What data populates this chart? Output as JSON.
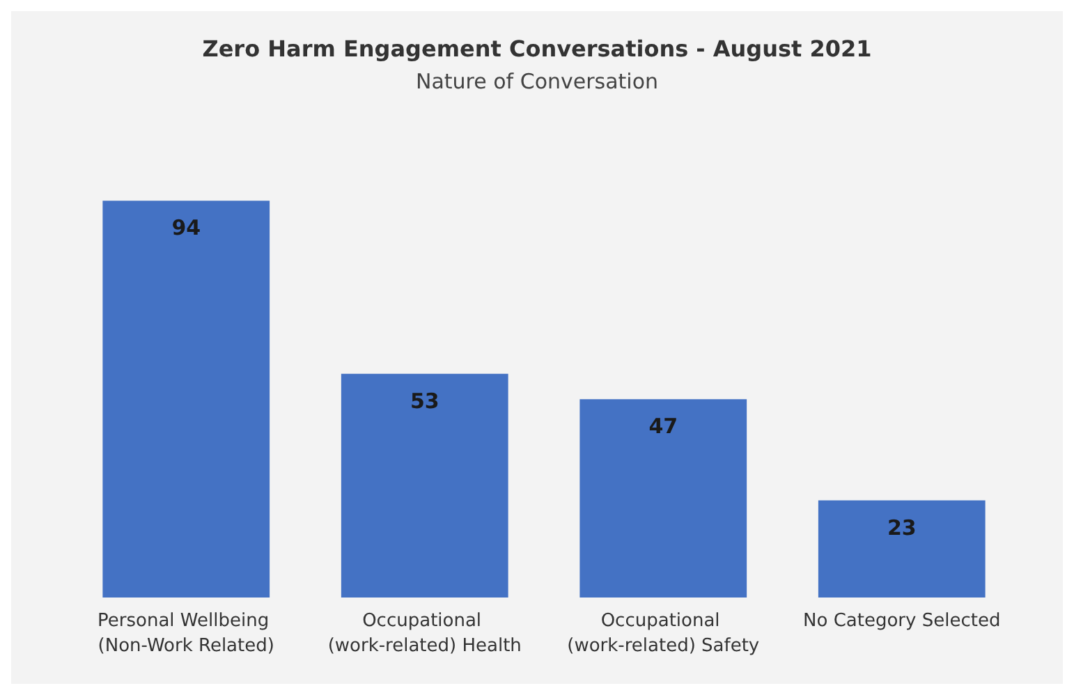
{
  "chart_data": {
    "type": "bar",
    "title": "Zero Harm Engagement Conversations - August 2021",
    "subtitle": "Nature of Conversation",
    "categories": [
      "Personal Wellbeing (Non-Work Related)",
      "Occupational (work-related) Health",
      "Occupational (work-related) Safety",
      "No Category Selected"
    ],
    "values": [
      94,
      53,
      47,
      23
    ],
    "color": "#4472c4",
    "data_labels": true
  }
}
